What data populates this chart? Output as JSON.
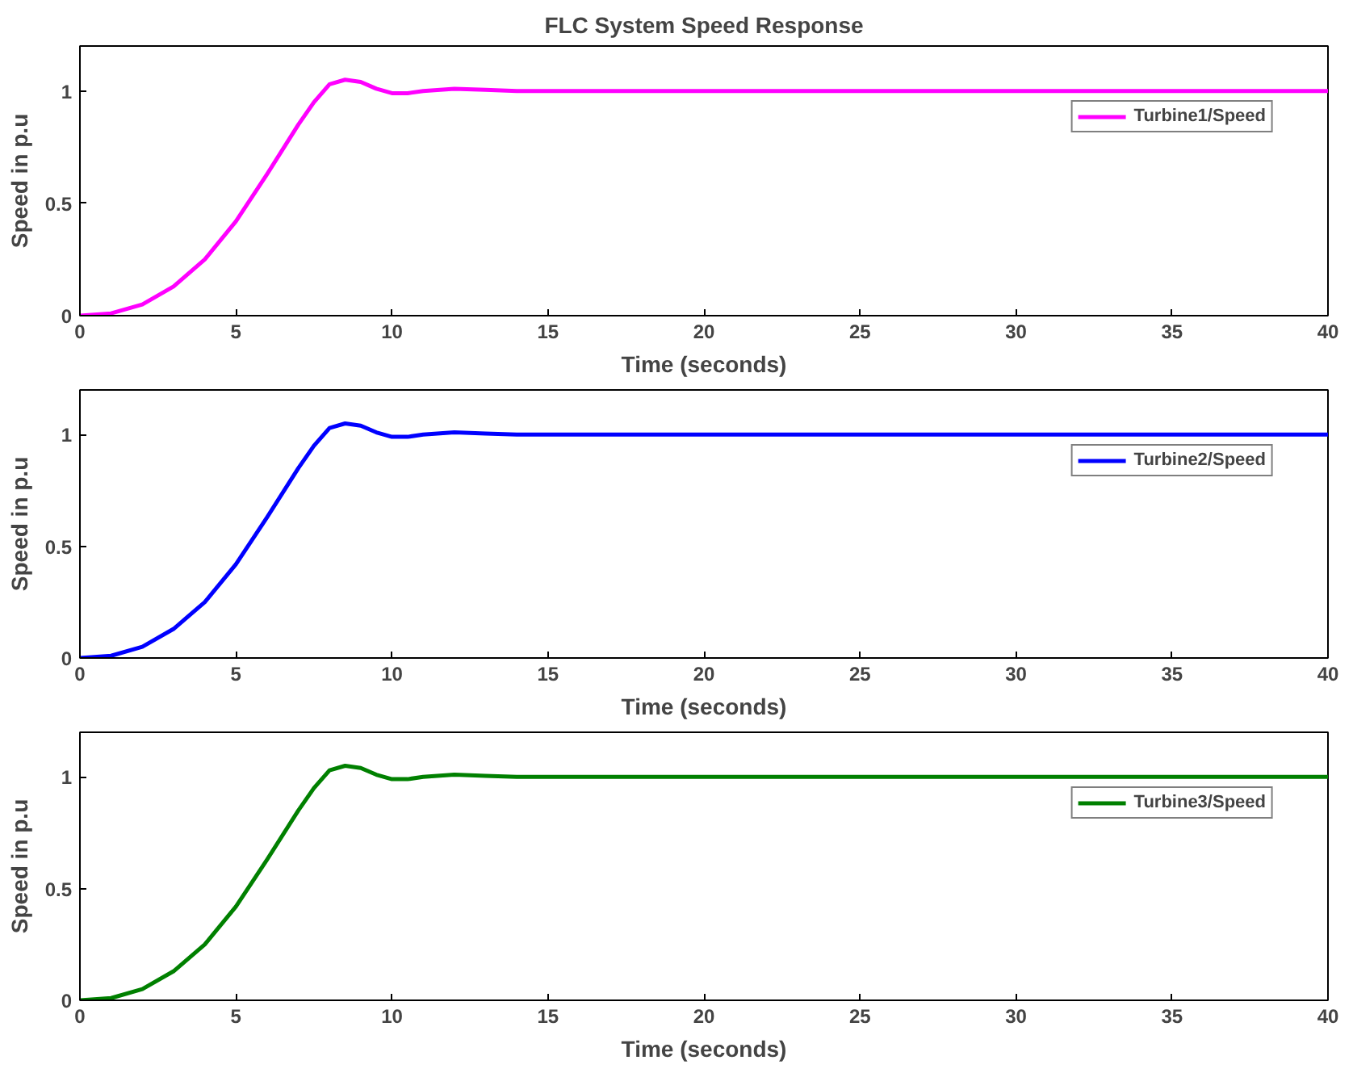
{
  "chart_data": [
    {
      "type": "line",
      "title": "FLC System Speed Response",
      "xlabel": "Time (seconds)",
      "ylabel": "Speed in p.u",
      "xlim": [
        0,
        40
      ],
      "ylim": [
        0,
        1.2
      ],
      "xticks": [
        0,
        5,
        10,
        15,
        20,
        25,
        30,
        35,
        40
      ],
      "yticks": [
        0,
        0.5,
        1
      ],
      "grid": false,
      "legend": "top right",
      "series": [
        {
          "name": "Turbine1/Speed",
          "color": "#ff00ff",
          "x": [
            0,
            1,
            2,
            3,
            4,
            5,
            6,
            7,
            7.5,
            8,
            8.5,
            9,
            9.5,
            10,
            10.5,
            11,
            12,
            13,
            14,
            15,
            20,
            25,
            30,
            35,
            40
          ],
          "values": [
            0,
            0.01,
            0.05,
            0.13,
            0.25,
            0.42,
            0.63,
            0.85,
            0.95,
            1.03,
            1.05,
            1.04,
            1.01,
            0.99,
            0.99,
            1.0,
            1.01,
            1.005,
            1.0,
            1.0,
            1.0,
            1.0,
            1.0,
            1.0,
            1.0
          ]
        }
      ]
    },
    {
      "type": "line",
      "xlabel": "Time (seconds)",
      "ylabel": "Speed in p.u",
      "xlim": [
        0,
        40
      ],
      "ylim": [
        0,
        1.2
      ],
      "xticks": [
        0,
        5,
        10,
        15,
        20,
        25,
        30,
        35,
        40
      ],
      "yticks": [
        0,
        0.5,
        1
      ],
      "grid": false,
      "legend": "top right",
      "series": [
        {
          "name": "Turbine2/Speed",
          "color": "#0000ff",
          "x": [
            0,
            1,
            2,
            3,
            4,
            5,
            6,
            7,
            7.5,
            8,
            8.5,
            9,
            9.5,
            10,
            10.5,
            11,
            12,
            13,
            14,
            15,
            20,
            25,
            30,
            35,
            40
          ],
          "values": [
            0,
            0.01,
            0.05,
            0.13,
            0.25,
            0.42,
            0.63,
            0.85,
            0.95,
            1.03,
            1.05,
            1.04,
            1.01,
            0.99,
            0.99,
            1.0,
            1.01,
            1.005,
            1.0,
            1.0,
            1.0,
            1.0,
            1.0,
            1.0,
            1.0
          ]
        }
      ]
    },
    {
      "type": "line",
      "xlabel": "Time (seconds)",
      "ylabel": "Speed in p.u",
      "xlim": [
        0,
        40
      ],
      "ylim": [
        0,
        1.2
      ],
      "xticks": [
        0,
        5,
        10,
        15,
        20,
        25,
        30,
        35,
        40
      ],
      "yticks": [
        0,
        0.5,
        1
      ],
      "grid": false,
      "legend": "top right",
      "series": [
        {
          "name": "Turbine3/Speed",
          "color": "#008000",
          "x": [
            0,
            1,
            2,
            3,
            4,
            5,
            6,
            7,
            7.5,
            8,
            8.5,
            9,
            9.5,
            10,
            10.5,
            11,
            12,
            13,
            14,
            15,
            20,
            25,
            30,
            35,
            40
          ],
          "values": [
            0,
            0.01,
            0.05,
            0.13,
            0.25,
            0.42,
            0.63,
            0.85,
            0.95,
            1.03,
            1.05,
            1.04,
            1.01,
            0.99,
            0.99,
            1.0,
            1.01,
            1.005,
            1.0,
            1.0,
            1.0,
            1.0,
            1.0,
            1.0,
            1.0
          ]
        }
      ]
    }
  ]
}
